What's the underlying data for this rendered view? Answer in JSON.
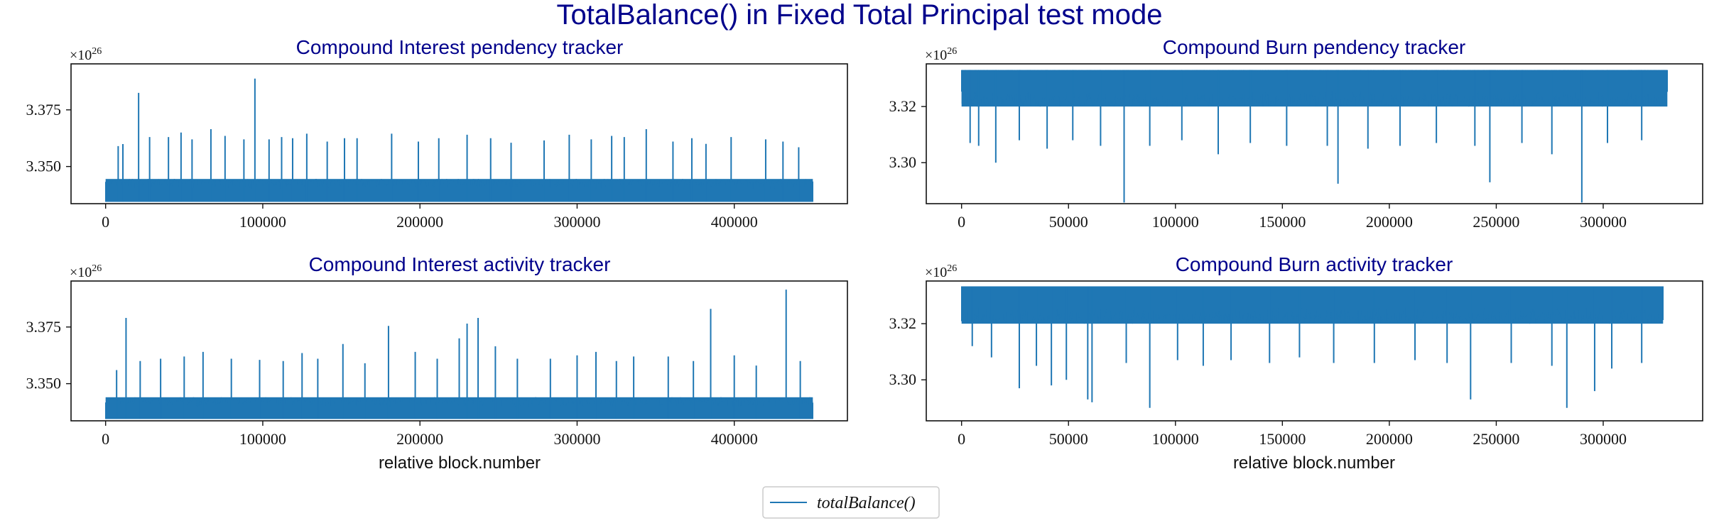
{
  "figure": {
    "title": "TotalBalance() in Fixed Total Principal test mode",
    "legend": {
      "label": "totalBalance()",
      "placement": "lower-center",
      "color": "#1f77b4"
    }
  },
  "chart_data": [
    {
      "id": "p0",
      "type": "line",
      "title": "Compound Interest pendency tracker",
      "xlabel": "",
      "ylabel": "",
      "y_multiplier": "×10",
      "y_multiplier_exp": "26",
      "xlim": [
        -22000,
        472000
      ],
      "ylim": [
        3.3336,
        3.3953
      ],
      "xticks": [
        0,
        100000,
        200000,
        300000,
        400000
      ],
      "xtick_labels": [
        "0",
        "100000",
        "200000",
        "300000",
        "400000"
      ],
      "yticks": [
        3.35,
        3.375
      ],
      "ytick_labels": [
        "3.350",
        "3.375"
      ],
      "grid": false,
      "color": "#1f77b4",
      "series": [
        {
          "name": "totalBalance()",
          "x_range": [
            0,
            450000
          ],
          "baseline": 3.3344,
          "band_top": 3.3445,
          "spikes": [
            [
              8000,
              3.359
            ],
            [
              11000,
              3.3599
            ],
            [
              21000,
              3.3825
            ],
            [
              28000,
              3.363
            ],
            [
              40000,
              3.363
            ],
            [
              48000,
              3.365
            ],
            [
              55000,
              3.362
            ],
            [
              67000,
              3.3665
            ],
            [
              76000,
              3.3635
            ],
            [
              88000,
              3.362
            ],
            [
              95000,
              3.3888
            ],
            [
              104000,
              3.362
            ],
            [
              112000,
              3.363
            ],
            [
              119000,
              3.3625
            ],
            [
              128000,
              3.3645
            ],
            [
              141000,
              3.361
            ],
            [
              152000,
              3.3625
            ],
            [
              160000,
              3.3625
            ],
            [
              182000,
              3.3645
            ],
            [
              199000,
              3.361
            ],
            [
              212000,
              3.3625
            ],
            [
              230000,
              3.364
            ],
            [
              245000,
              3.3625
            ],
            [
              258000,
              3.3605
            ],
            [
              279000,
              3.3615
            ],
            [
              295000,
              3.364
            ],
            [
              309000,
              3.362
            ],
            [
              322000,
              3.3635
            ],
            [
              330000,
              3.363
            ],
            [
              344000,
              3.3665
            ],
            [
              361000,
              3.361
            ],
            [
              373000,
              3.3625
            ],
            [
              382000,
              3.36
            ],
            [
              398000,
              3.363
            ],
            [
              420000,
              3.362
            ],
            [
              431000,
              3.361
            ],
            [
              441000,
              3.3585
            ]
          ]
        }
      ]
    },
    {
      "id": "p1",
      "type": "line",
      "title": "Compound Burn pendency tracker",
      "xlabel": "",
      "ylabel": "",
      "y_multiplier": "×10",
      "y_multiplier_exp": "26",
      "xlim": [
        -16500,
        346500
      ],
      "ylim": [
        3.2854,
        3.3352
      ],
      "xticks": [
        0,
        50000,
        100000,
        150000,
        200000,
        250000,
        300000
      ],
      "xtick_labels": [
        "0",
        "50000",
        "100000",
        "150000",
        "200000",
        "250000",
        "300000"
      ],
      "yticks": [
        3.3,
        3.32
      ],
      "ytick_labels": [
        "3.30",
        "3.32"
      ],
      "grid": false,
      "color": "#1f77b4",
      "series": [
        {
          "name": "totalBalance()",
          "x_range": [
            0,
            330000
          ],
          "baseline": 3.333,
          "band_top": 3.32,
          "spikes": [
            [
              4000,
              3.307
            ],
            [
              8000,
              3.306
            ],
            [
              16000,
              3.3
            ],
            [
              27000,
              3.308
            ],
            [
              40000,
              3.305
            ],
            [
              52000,
              3.308
            ],
            [
              65000,
              3.306
            ],
            [
              76000,
              3.2858
            ],
            [
              88000,
              3.306
            ],
            [
              103000,
              3.308
            ],
            [
              120000,
              3.303
            ],
            [
              135000,
              3.307
            ],
            [
              152000,
              3.306
            ],
            [
              171000,
              3.306
            ],
            [
              176000,
              3.2925
            ],
            [
              190000,
              3.305
            ],
            [
              205000,
              3.306
            ],
            [
              222000,
              3.307
            ],
            [
              240000,
              3.306
            ],
            [
              247000,
              3.293
            ],
            [
              262000,
              3.307
            ],
            [
              276000,
              3.303
            ],
            [
              290000,
              3.2858
            ],
            [
              302000,
              3.307
            ],
            [
              318000,
              3.308
            ]
          ]
        }
      ]
    },
    {
      "id": "p2",
      "type": "line",
      "title": "Compound Interest activity tracker",
      "xlabel": "relative block.number",
      "ylabel": "",
      "y_multiplier": "×10",
      "y_multiplier_exp": "26",
      "xlim": [
        -22000,
        472000
      ],
      "ylim": [
        3.3336,
        3.3953
      ],
      "xticks": [
        0,
        100000,
        200000,
        300000,
        400000
      ],
      "xtick_labels": [
        "0",
        "100000",
        "200000",
        "300000",
        "400000"
      ],
      "yticks": [
        3.35,
        3.375
      ],
      "ytick_labels": [
        "3.350",
        "3.375"
      ],
      "grid": false,
      "color": "#1f77b4",
      "series": [
        {
          "name": "totalBalance()",
          "x_range": [
            0,
            450000
          ],
          "baseline": 3.3344,
          "band_top": 3.344,
          "spikes": [
            [
              7000,
              3.356
            ],
            [
              13000,
              3.379
            ],
            [
              22000,
              3.36
            ],
            [
              35000,
              3.361
            ],
            [
              50000,
              3.362
            ],
            [
              62000,
              3.364
            ],
            [
              80000,
              3.361
            ],
            [
              98000,
              3.3605
            ],
            [
              113000,
              3.36
            ],
            [
              125000,
              3.3635
            ],
            [
              135000,
              3.361
            ],
            [
              151000,
              3.3675
            ],
            [
              165000,
              3.359
            ],
            [
              180000,
              3.3755
            ],
            [
              197000,
              3.364
            ],
            [
              211000,
              3.361
            ],
            [
              225000,
              3.37
            ],
            [
              230000,
              3.3765
            ],
            [
              237000,
              3.379
            ],
            [
              248000,
              3.3665
            ],
            [
              262000,
              3.361
            ],
            [
              283000,
              3.361
            ],
            [
              300000,
              3.3625
            ],
            [
              312000,
              3.364
            ],
            [
              325000,
              3.36
            ],
            [
              336000,
              3.362
            ],
            [
              358000,
              3.362
            ],
            [
              374000,
              3.36
            ],
            [
              385000,
              3.383
            ],
            [
              400000,
              3.3625
            ],
            [
              414000,
              3.358
            ],
            [
              433000,
              3.3915
            ],
            [
              442000,
              3.36
            ]
          ]
        }
      ]
    },
    {
      "id": "p3",
      "type": "line",
      "title": "Compound Burn activity tracker",
      "xlabel": "relative block.number",
      "ylabel": "",
      "y_multiplier": "×10",
      "y_multiplier_exp": "26",
      "xlim": [
        -16500,
        346500
      ],
      "ylim": [
        3.2854,
        3.3352
      ],
      "xticks": [
        0,
        50000,
        100000,
        150000,
        200000,
        250000,
        300000
      ],
      "xtick_labels": [
        "0",
        "50000",
        "100000",
        "150000",
        "200000",
        "250000",
        "300000"
      ],
      "yticks": [
        3.3,
        3.32
      ],
      "ytick_labels": [
        "3.30",
        "3.32"
      ],
      "grid": false,
      "color": "#1f77b4",
      "series": [
        {
          "name": "totalBalance()",
          "x_range": [
            0,
            328000
          ],
          "baseline": 3.3333,
          "band_top": 3.32,
          "spikes": [
            [
              5000,
              3.312
            ],
            [
              14000,
              3.308
            ],
            [
              27000,
              3.297
            ],
            [
              35000,
              3.305
            ],
            [
              42000,
              3.298
            ],
            [
              49000,
              3.3
            ],
            [
              59000,
              3.293
            ],
            [
              61000,
              3.292
            ],
            [
              77000,
              3.306
            ],
            [
              88000,
              3.29
            ],
            [
              101000,
              3.307
            ],
            [
              113000,
              3.305
            ],
            [
              126000,
              3.307
            ],
            [
              144000,
              3.306
            ],
            [
              158000,
              3.308
            ],
            [
              174000,
              3.306
            ],
            [
              193000,
              3.306
            ],
            [
              212000,
              3.307
            ],
            [
              227000,
              3.306
            ],
            [
              238000,
              3.293
            ],
            [
              257000,
              3.306
            ],
            [
              276000,
              3.305
            ],
            [
              283000,
              3.29
            ],
            [
              296000,
              3.296
            ],
            [
              304000,
              3.304
            ],
            [
              318000,
              3.306
            ]
          ]
        }
      ]
    }
  ]
}
